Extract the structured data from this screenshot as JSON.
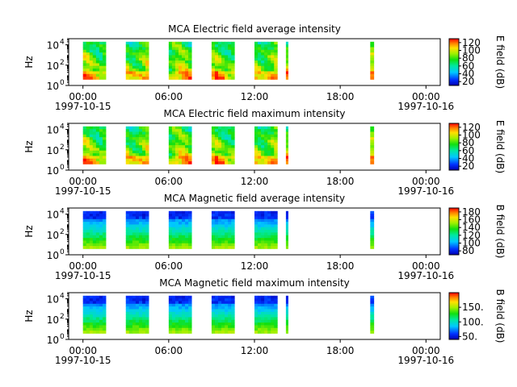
{
  "chart_data": [
    {
      "type": "heatmap",
      "title": "MCA  Electric field average intensity",
      "ylabel": "Hz",
      "y_scale": "log",
      "ylim": [
        1,
        40000
      ],
      "y_ticks": [
        {
          "base": "10",
          "exp": "0"
        },
        {
          "base": "10",
          "exp": "2"
        },
        {
          "base": "10",
          "exp": "4"
        }
      ],
      "x_ticks": [
        {
          "time": "00:00",
          "date": "1997-10-15"
        },
        {
          "time": "06:00",
          "date": ""
        },
        {
          "time": "12:00",
          "date": ""
        },
        {
          "time": "18:00",
          "date": ""
        },
        {
          "time": "00:00",
          "date": "1997-10-16"
        }
      ],
      "xlim_hours": [
        -1,
        25
      ],
      "colorbar": {
        "label": "E field (dB)",
        "min": 10,
        "max": 130,
        "ticks": [
          "20",
          "40",
          "60",
          "80",
          "100",
          "120"
        ]
      },
      "segments_hours": [
        [
          0,
          1.6
        ],
        [
          3,
          4.6
        ],
        [
          6,
          7.6
        ],
        [
          9,
          10.6
        ],
        [
          12,
          13.6
        ],
        [
          14.2,
          14.35
        ],
        [
          20.1,
          20.35
        ]
      ],
      "profile": "electric"
    },
    {
      "type": "heatmap",
      "title": "MCA  Electric field maximum intensity",
      "ylabel": "Hz",
      "y_scale": "log",
      "ylim": [
        1,
        40000
      ],
      "y_ticks": [
        {
          "base": "10",
          "exp": "0"
        },
        {
          "base": "10",
          "exp": "2"
        },
        {
          "base": "10",
          "exp": "4"
        }
      ],
      "x_ticks": [
        {
          "time": "00:00",
          "date": "1997-10-15"
        },
        {
          "time": "06:00",
          "date": ""
        },
        {
          "time": "12:00",
          "date": ""
        },
        {
          "time": "18:00",
          "date": ""
        },
        {
          "time": "00:00",
          "date": "1997-10-16"
        }
      ],
      "xlim_hours": [
        -1,
        25
      ],
      "colorbar": {
        "label": "E field (dB)",
        "min": 10,
        "max": 130,
        "ticks": [
          "20",
          "40",
          "60",
          "80",
          "100",
          "120"
        ]
      },
      "segments_hours": [
        [
          0,
          1.6
        ],
        [
          3,
          4.6
        ],
        [
          6,
          7.6
        ],
        [
          9,
          10.6
        ],
        [
          12,
          13.6
        ],
        [
          14.2,
          14.35
        ],
        [
          20.1,
          20.35
        ]
      ],
      "profile": "electric"
    },
    {
      "type": "heatmap",
      "title": "MCA  Magnetic field average intensity",
      "ylabel": "Hz",
      "y_scale": "log",
      "ylim": [
        1,
        40000
      ],
      "y_ticks": [
        {
          "base": "10",
          "exp": "0"
        },
        {
          "base": "10",
          "exp": "2"
        },
        {
          "base": "10",
          "exp": "4"
        }
      ],
      "x_ticks": [
        {
          "time": "00:00",
          "date": "1997-10-15"
        },
        {
          "time": "06:00",
          "date": ""
        },
        {
          "time": "12:00",
          "date": ""
        },
        {
          "time": "18:00",
          "date": ""
        },
        {
          "time": "00:00",
          "date": "1997-10-16"
        }
      ],
      "xlim_hours": [
        -1,
        25
      ],
      "colorbar": {
        "label": "B field (dB)",
        "min": 70,
        "max": 190,
        "ticks": [
          "80",
          "100",
          "120",
          "140",
          "160",
          "180"
        ]
      },
      "segments_hours": [
        [
          0,
          1.6
        ],
        [
          3,
          4.6
        ],
        [
          6,
          7.6
        ],
        [
          9,
          10.6
        ],
        [
          12,
          13.6
        ],
        [
          14.2,
          14.35
        ],
        [
          20.1,
          20.35
        ]
      ],
      "profile": "magnetic"
    },
    {
      "type": "heatmap",
      "title": "MCA  Magnetic field maximum intensity",
      "ylabel": "Hz",
      "y_scale": "log",
      "ylim": [
        1,
        40000
      ],
      "y_ticks": [
        {
          "base": "10",
          "exp": "0"
        },
        {
          "base": "10",
          "exp": "2"
        },
        {
          "base": "10",
          "exp": "4"
        }
      ],
      "x_ticks": [
        {
          "time": "00:00",
          "date": "1997-10-15"
        },
        {
          "time": "06:00",
          "date": ""
        },
        {
          "time": "12:00",
          "date": ""
        },
        {
          "time": "18:00",
          "date": ""
        },
        {
          "time": "00:00",
          "date": "1997-10-16"
        }
      ],
      "xlim_hours": [
        -1,
        25
      ],
      "colorbar": {
        "label": "B field (dB)",
        "min": 40,
        "max": 200,
        "ticks": [
          "50.",
          "100.",
          "150."
        ]
      },
      "segments_hours": [
        [
          0,
          1.6
        ],
        [
          3,
          4.6
        ],
        [
          6,
          7.6
        ],
        [
          9,
          10.6
        ],
        [
          12,
          13.6
        ],
        [
          14.2,
          14.35
        ],
        [
          20.1,
          20.35
        ]
      ],
      "profile": "magnetic"
    }
  ]
}
